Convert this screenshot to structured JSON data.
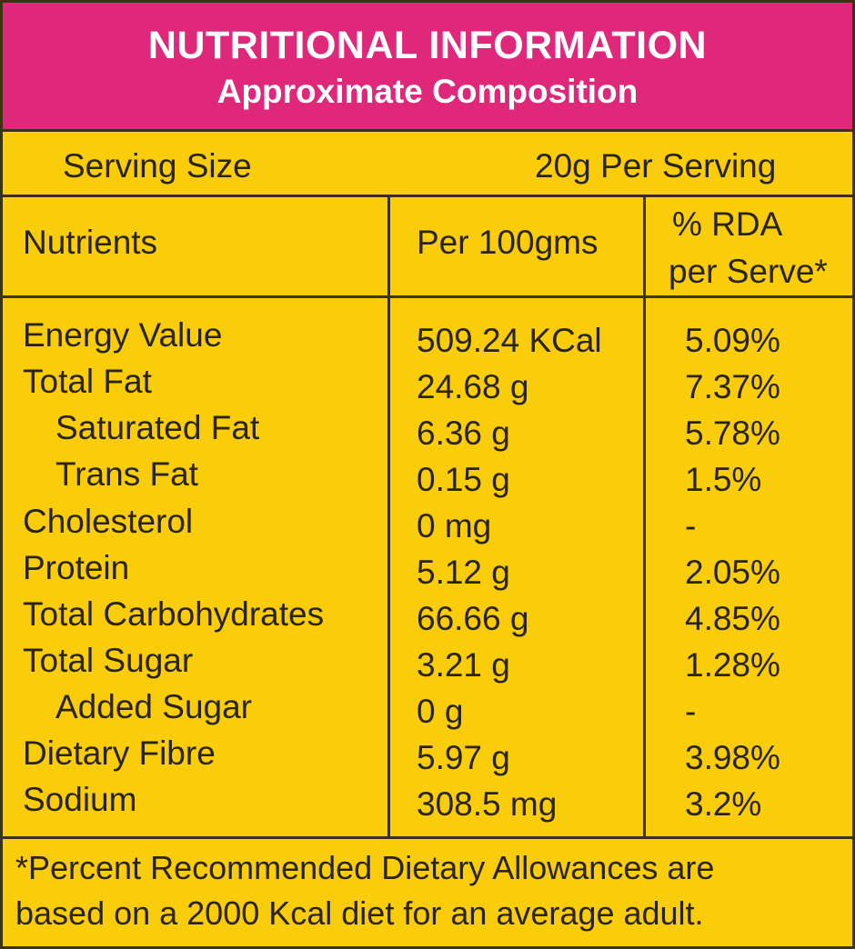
{
  "header": {
    "title": "NUTRITIONAL INFORMATION",
    "subtitle": "Approximate Composition"
  },
  "serving": {
    "label": "Serving Size",
    "value": "20g Per Serving"
  },
  "columns": {
    "nutrients": "Nutrients",
    "per100": "Per 100gms",
    "rda_line1": "% RDA",
    "rda_line2": "per Serve*"
  },
  "rows": [
    {
      "name": "Energy Value",
      "per100": "509.24 KCal",
      "rda": "5.09%"
    },
    {
      "name": "Total Fat",
      "per100": "24.68 g",
      "rda": "7.37%"
    },
    {
      "name": "Saturated Fat",
      "per100": "6.36 g",
      "rda": "5.78%"
    },
    {
      "name": "Trans Fat",
      "per100": "0.15 g",
      "rda": "1.5%"
    },
    {
      "name": "Cholesterol",
      "per100": "0 mg",
      "rda": "-"
    },
    {
      "name": "Protein",
      "per100": "5.12 g",
      "rda": "2.05%"
    },
    {
      "name": "Total Carbohydrates",
      "per100": "66.66 g",
      "rda": "4.85%"
    },
    {
      "name": "Total Sugar",
      "per100": "3.21 g",
      "rda": "1.28%"
    },
    {
      "name": "Added Sugar",
      "per100": "0 g",
      "rda": "-"
    },
    {
      "name": "Dietary Fibre",
      "per100": "5.97 g",
      "rda": "3.98%"
    },
    {
      "name": "Sodium",
      "per100": "308.5 mg",
      "rda": "3.2%"
    }
  ],
  "footnote": {
    "line1": "*Percent Recommended Dietary Allowances are",
    "line2": "based on a 2000 Kcal diet for an average adult."
  },
  "colors": {
    "header_bg": "#e0287b",
    "panel_bg": "#f9cd0b",
    "rule": "#3b3212",
    "text": "#2a2410"
  }
}
